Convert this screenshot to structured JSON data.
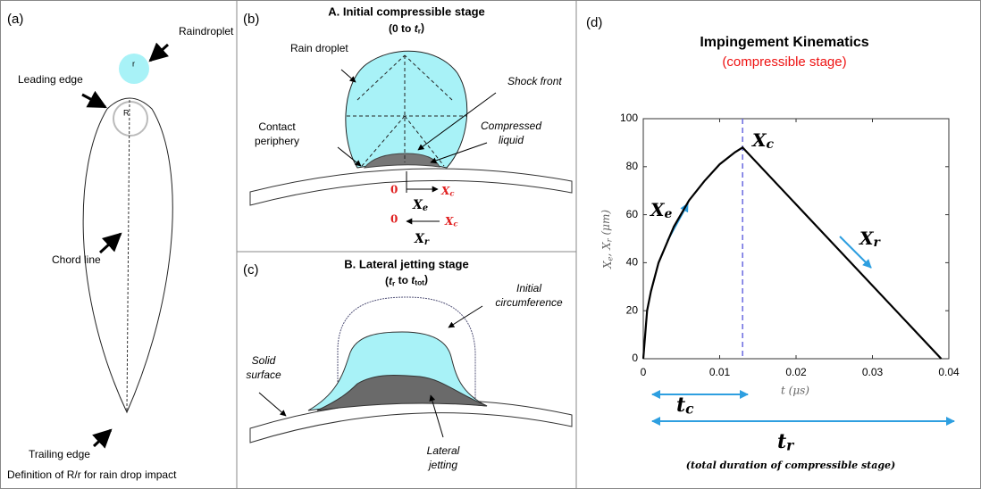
{
  "panels": {
    "a": {
      "label": "(a)",
      "raindroplet": "Raindroplet",
      "r": "r",
      "leading_edge": "Leading edge",
      "R": "R",
      "chord_line": "Chord line",
      "trailing_edge": "Trailing edge",
      "caption": "Definition of R/r for rain drop impact"
    },
    "b": {
      "label": "(b)",
      "title": "A. Initial compressible stage",
      "subtitle": {
        "segments": [
          {
            "text": "(0 to "
          },
          {
            "text": "t",
            "italic": true
          },
          {
            "text": "r",
            "sub": true
          },
          {
            "text": ")"
          }
        ]
      },
      "rain_droplet": "Rain droplet",
      "shock_front": "Shock front",
      "compressed_liquid": [
        "Compressed",
        "liquid"
      ],
      "contact_periphery": [
        "Contact",
        "periphery"
      ],
      "zero_1": "0",
      "xc_1": {
        "segments": [
          {
            "text": "X"
          },
          {
            "text": "c",
            "sub": true
          }
        ]
      },
      "xe": {
        "segments": [
          {
            "text": "X"
          },
          {
            "text": "e",
            "sub": true
          }
        ]
      },
      "zero_2": "0",
      "xc_2": {
        "segments": [
          {
            "text": "X"
          },
          {
            "text": "c",
            "sub": true
          }
        ]
      },
      "xr": {
        "segments": [
          {
            "text": "X"
          },
          {
            "text": "r",
            "sub": true
          }
        ]
      }
    },
    "c": {
      "label": "(c)",
      "title": "B. Lateral jetting stage",
      "subtitle": {
        "segments": [
          {
            "text": "("
          },
          {
            "text": "t",
            "italic": true
          },
          {
            "text": "r",
            "sub": true
          },
          {
            "text": " to "
          },
          {
            "text": "t",
            "italic": true
          },
          {
            "text": "tot",
            "sub": true
          },
          {
            "text": ")"
          }
        ]
      },
      "initial_circumference": [
        "Initial",
        "circumference"
      ],
      "solid_surface": [
        "Solid",
        "surface"
      ],
      "lateral_jetting": [
        "Lateral",
        "jetting"
      ]
    },
    "d": {
      "label": "(d)"
    }
  },
  "chart_data": {
    "type": "line",
    "title": "Impingement Kinematics",
    "subtitle": "(compressible stage)",
    "subtitle_color": "#ee1111",
    "xlabel": "t (μs)",
    "ylabel": {
      "segments": [
        {
          "text": "X"
        },
        {
          "text": "e",
          "sub": true
        },
        {
          "text": ", X"
        },
        {
          "text": "r",
          "sub": true
        },
        {
          "text": " (μm)"
        }
      ]
    },
    "x": [
      0,
      0.0005,
      0.001,
      0.002,
      0.004,
      0.006,
      0.008,
      0.01,
      0.012,
      0.013,
      0.039
    ],
    "values": [
      0,
      20,
      28,
      40,
      55,
      66,
      74,
      81,
      86,
      88,
      0
    ],
    "color": "#000000",
    "xlim": [
      0,
      0.04
    ],
    "xticks": [
      0,
      0.01,
      0.02,
      0.03,
      0.04
    ],
    "ylim": [
      0,
      100
    ],
    "yticks": [
      0,
      20,
      40,
      60,
      80,
      100
    ],
    "vline": {
      "x": 0.013,
      "color": "#6a6ae0"
    },
    "annotations": {
      "xc": {
        "segments": [
          {
            "text": "X"
          },
          {
            "text": "c",
            "sub": true
          }
        ]
      },
      "xe": {
        "segments": [
          {
            "text": "X"
          },
          {
            "text": "e",
            "sub": true
          }
        ]
      },
      "xr": {
        "segments": [
          {
            "text": "X"
          },
          {
            "text": "r",
            "sub": true
          }
        ]
      },
      "tc": {
        "segments": [
          {
            "text": "t"
          },
          {
            "text": "c",
            "sub": true
          }
        ]
      },
      "tr": {
        "segments": [
          {
            "text": "t"
          },
          {
            "text": "r",
            "sub": true
          }
        ]
      },
      "note": "(total duration of compressible stage)"
    }
  }
}
